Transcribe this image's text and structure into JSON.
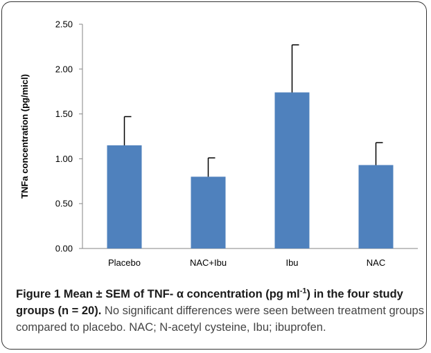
{
  "chart_data": {
    "type": "bar",
    "ylabel": "TNFa concentration (pg/micl)",
    "xlabel": "",
    "categories": [
      "Placebo",
      "NAC+Ibu",
      "Ibu",
      "NAC"
    ],
    "values": [
      1.15,
      0.8,
      1.74,
      0.93
    ],
    "errors": [
      0.32,
      0.21,
      0.53,
      0.25
    ],
    "ylim": [
      0,
      2.5
    ],
    "yticks": [
      "0.00",
      "0.50",
      "1.00",
      "1.50",
      "2.00",
      "2.50"
    ],
    "ytick_values": [
      0,
      0.5,
      1.0,
      1.5,
      2.0,
      2.5
    ],
    "bar_color": "#4f81bd",
    "errorbar_color": "#000000",
    "grid": false,
    "legend": "none"
  },
  "caption": {
    "fig_label": "Figure 1",
    "title_part1": " Mean ± SEM of TNF- α concentration (pg ml",
    "title_sup": "-1",
    "title_part2": ") in the four study groups (n = 20).",
    "body": " No significant differences were seen between treatment groups compared to placebo. NAC; N-acetyl cysteine, Ibu; ibuprofen."
  }
}
